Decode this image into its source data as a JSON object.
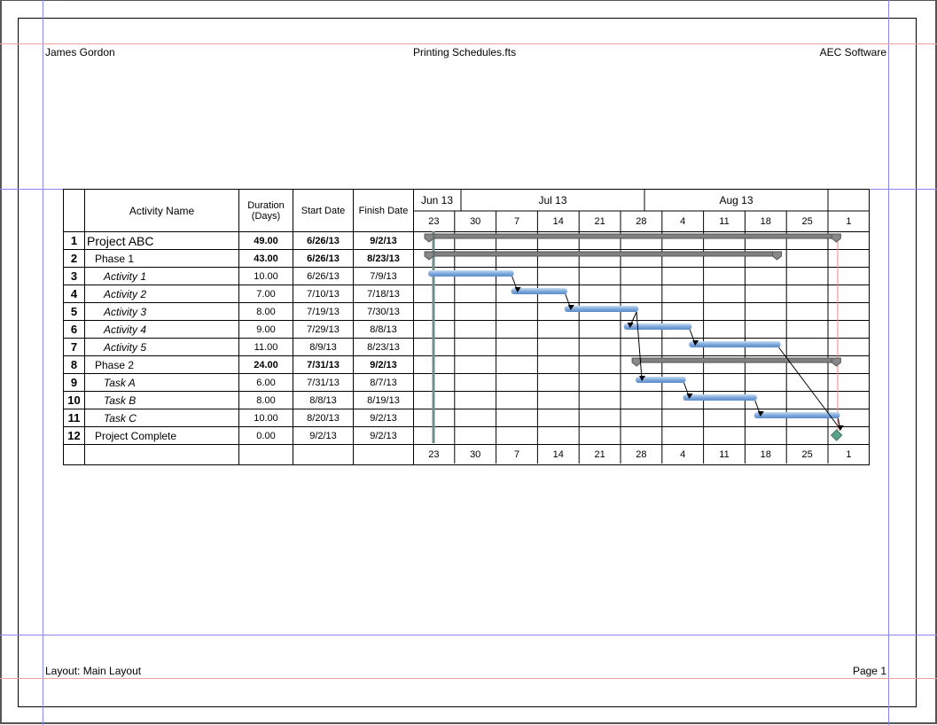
{
  "header": {
    "left": "James Gordon",
    "center": "Printing Schedules.fts",
    "right": "AEC Software"
  },
  "footer": {
    "left": "Layout: Main Layout",
    "right": "Page 1"
  },
  "columns": {
    "name": "Activity Name",
    "duration": "Duration (Days)",
    "start": "Start Date",
    "finish": "Finish Date"
  },
  "timescale": {
    "months": [
      "Jun 13",
      "Jul 13",
      "Aug 13",
      ""
    ],
    "weeks": [
      "23",
      "30",
      "7",
      "14",
      "21",
      "28",
      "4",
      "11",
      "18",
      "25",
      "1"
    ]
  },
  "rows": [
    {
      "num": "1",
      "name": "Project ABC",
      "duration": "49.00",
      "start": "6/26/13",
      "finish": "9/2/13",
      "type": "project"
    },
    {
      "num": "2",
      "name": "Phase 1",
      "duration": "43.00",
      "start": "6/26/13",
      "finish": "8/23/13",
      "type": "summary"
    },
    {
      "num": "3",
      "name": "Activity 1",
      "duration": "10.00",
      "start": "6/26/13",
      "finish": "7/9/13",
      "type": "task"
    },
    {
      "num": "4",
      "name": "Activity 2",
      "duration": "7.00",
      "start": "7/10/13",
      "finish": "7/18/13",
      "type": "task"
    },
    {
      "num": "5",
      "name": "Activity 3",
      "duration": "8.00",
      "start": "7/19/13",
      "finish": "7/30/13",
      "type": "task"
    },
    {
      "num": "6",
      "name": "Activity 4",
      "duration": "9.00",
      "start": "7/29/13",
      "finish": "8/8/13",
      "type": "task"
    },
    {
      "num": "7",
      "name": "Activity 5",
      "duration": "11.00",
      "start": "8/9/13",
      "finish": "8/23/13",
      "type": "task"
    },
    {
      "num": "8",
      "name": "Phase 2",
      "duration": "24.00",
      "start": "7/31/13",
      "finish": "9/2/13",
      "type": "summary"
    },
    {
      "num": "9",
      "name": "Task A",
      "duration": "6.00",
      "start": "7/31/13",
      "finish": "8/7/13",
      "type": "task"
    },
    {
      "num": "10",
      "name": "Task B",
      "duration": "8.00",
      "start": "8/8/13",
      "finish": "8/19/13",
      "type": "task"
    },
    {
      "num": "11",
      "name": "Task C",
      "duration": "10.00",
      "start": "8/20/13",
      "finish": "9/2/13",
      "type": "task"
    },
    {
      "num": "12",
      "name": "Project Complete",
      "duration": "0.00",
      "start": "9/2/13",
      "finish": "9/2/13",
      "type": "milestone"
    }
  ],
  "links": [
    [
      3,
      4
    ],
    [
      4,
      5
    ],
    [
      5,
      6
    ],
    [
      5,
      9
    ],
    [
      6,
      7
    ],
    [
      7,
      12
    ],
    [
      9,
      10
    ],
    [
      10,
      11
    ],
    [
      11,
      12
    ]
  ],
  "colors": {
    "task": "#7fa9dc",
    "summary": "#808080",
    "milestone": "#5aa08a",
    "status_line": "#6f8f8f",
    "finish_line": "#f08080"
  }
}
